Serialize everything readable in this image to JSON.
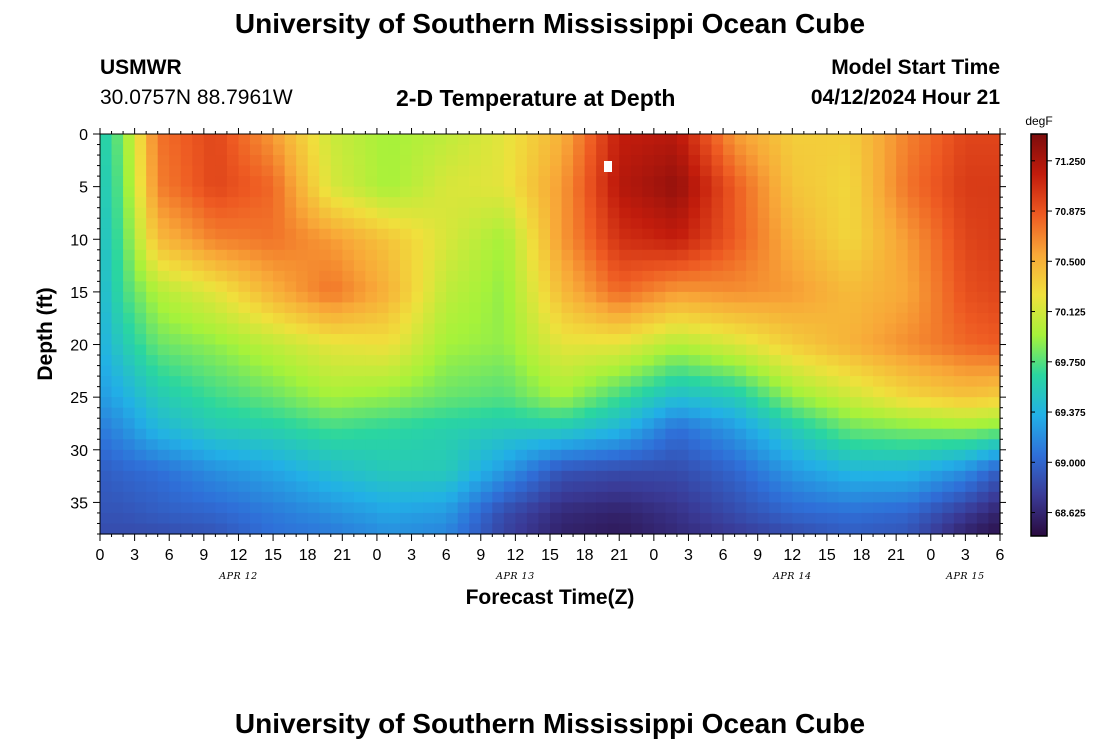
{
  "header": {
    "title": "University of Southern Mississippi Ocean Cube",
    "station_id": "USMWR",
    "station_coords": "30.0757N  88.7961W",
    "plot_title": "2-D Temperature at Depth",
    "model_label": "Model Start Time",
    "model_start": "04/12/2024 Hour 21"
  },
  "footer": {
    "title": "University of Southern Mississippi Ocean Cube"
  },
  "chart_data": {
    "type": "heatmap",
    "title": "2-D Temperature at Depth",
    "xlabel": "Forecast Time(Z)",
    "ylabel": "Depth (ft)",
    "x_ticks": [
      "0",
      "3",
      "6",
      "9",
      "12",
      "15",
      "18",
      "21",
      "0",
      "3",
      "6",
      "9",
      "12",
      "15",
      "18",
      "21",
      "0",
      "3",
      "6",
      "9",
      "12",
      "15",
      "18",
      "21",
      "0",
      "3",
      "6"
    ],
    "x_range_hours": [
      0,
      78
    ],
    "date_labels": [
      {
        "text": "APR 12",
        "hour": 12
      },
      {
        "text": "APR 13",
        "hour": 36
      },
      {
        "text": "APR 14",
        "hour": 60
      },
      {
        "text": "APR 15",
        "hour": 75
      }
    ],
    "y_ticks": [
      0,
      5,
      10,
      15,
      20,
      25,
      30,
      35
    ],
    "y_range_ft": [
      0,
      38
    ],
    "colorbar": {
      "unit": "degF",
      "ticks": [
        "71.250",
        "70.875",
        "70.500",
        "70.125",
        "69.750",
        "69.375",
        "69.000",
        "68.625"
      ],
      "range": [
        68.45,
        71.45
      ],
      "colors": [
        "#2a0a3e",
        "#3a3a96",
        "#2f6fd8",
        "#22b0e6",
        "#2ad6a0",
        "#a6f23a",
        "#f0e03c",
        "#f8a838",
        "#ee5a22",
        "#c21c0c",
        "#7c0c0c"
      ]
    },
    "grid_time_hours": [
      0,
      2,
      5,
      10,
      15,
      20,
      25,
      30,
      35,
      40,
      45,
      50,
      55,
      60,
      65,
      70,
      75,
      78
    ],
    "grid_depth_ft": [
      0,
      5,
      10,
      15,
      20,
      25,
      28,
      32,
      36,
      38
    ],
    "values_degF": [
      [
        69.55,
        69.85,
        70.75,
        70.95,
        70.6,
        70.1,
        69.95,
        70.05,
        70.2,
        70.5,
        71.15,
        71.2,
        70.6,
        70.35,
        70.35,
        70.7,
        70.95,
        70.95
      ],
      [
        69.5,
        69.8,
        70.7,
        70.95,
        70.8,
        70.15,
        69.95,
        70.15,
        70.2,
        70.6,
        71.2,
        71.35,
        70.85,
        70.4,
        70.3,
        70.75,
        71.0,
        71.0
      ],
      [
        69.45,
        69.75,
        70.45,
        70.7,
        70.75,
        70.6,
        70.4,
        70.15,
        69.95,
        70.6,
        71.05,
        71.15,
        70.85,
        70.5,
        70.3,
        70.6,
        70.95,
        71.0
      ],
      [
        69.4,
        69.7,
        70.0,
        70.2,
        70.5,
        70.75,
        70.5,
        70.05,
        69.9,
        70.45,
        70.8,
        70.6,
        70.65,
        70.6,
        70.45,
        70.55,
        70.9,
        70.95
      ],
      [
        69.35,
        69.55,
        69.8,
        69.9,
        70.05,
        70.2,
        70.25,
        69.95,
        69.9,
        70.2,
        70.2,
        70.0,
        70.15,
        70.35,
        70.5,
        70.65,
        70.8,
        70.85
      ],
      [
        69.25,
        69.35,
        69.55,
        69.7,
        69.8,
        69.95,
        69.9,
        69.8,
        69.75,
        69.95,
        69.7,
        69.45,
        69.55,
        69.9,
        70.1,
        70.3,
        70.4,
        70.35
      ],
      [
        69.1,
        69.2,
        69.4,
        69.55,
        69.6,
        69.7,
        69.65,
        69.6,
        69.55,
        69.55,
        69.4,
        69.05,
        69.25,
        69.55,
        69.8,
        69.85,
        69.9,
        69.85
      ],
      [
        68.95,
        69.0,
        69.05,
        69.2,
        69.3,
        69.45,
        69.55,
        69.55,
        69.25,
        68.9,
        68.85,
        68.85,
        69.0,
        69.25,
        69.4,
        69.4,
        69.2,
        68.95
      ],
      [
        68.9,
        68.9,
        68.95,
        69.0,
        69.1,
        69.2,
        69.3,
        69.25,
        68.85,
        68.65,
        68.6,
        68.7,
        68.85,
        69.0,
        69.05,
        69.0,
        68.75,
        68.6
      ],
      [
        68.85,
        68.85,
        68.85,
        68.9,
        69.05,
        69.1,
        69.2,
        69.15,
        68.8,
        68.6,
        68.55,
        68.65,
        68.75,
        68.85,
        68.95,
        68.9,
        68.6,
        68.5
      ]
    ]
  }
}
